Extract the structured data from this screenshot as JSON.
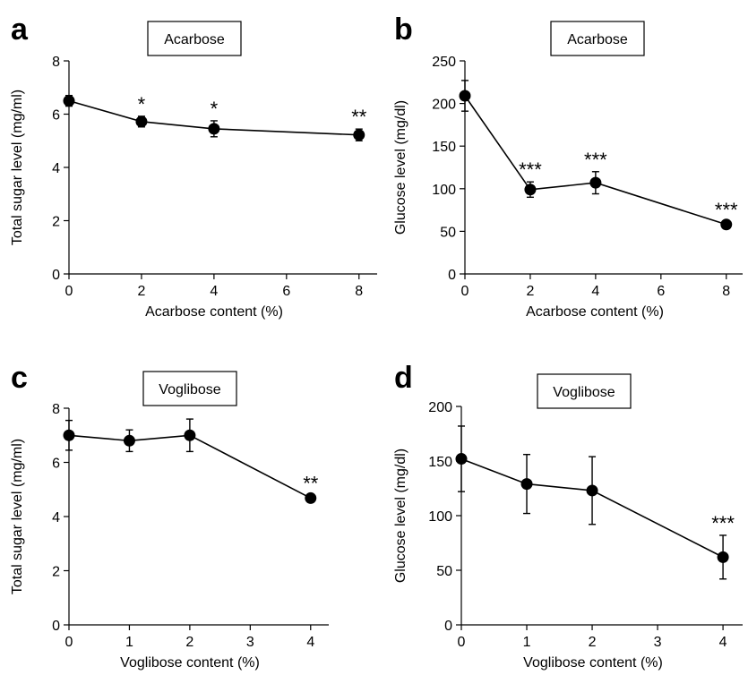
{
  "chart_data": [
    {
      "type": "line",
      "panel_label": "a",
      "title": "Acarbose",
      "xlabel": "Acarbose content (%)",
      "ylabel": "Total sugar level (mg/ml)",
      "x": [
        0,
        2,
        4,
        8
      ],
      "y": [
        6.5,
        5.72,
        5.45,
        5.22
      ],
      "err": [
        0.2,
        0.2,
        0.3,
        0.22
      ],
      "sig": [
        "",
        "*",
        "*",
        "**"
      ],
      "xlim": [
        0,
        8.5
      ],
      "ylim": [
        0,
        8
      ],
      "xticks": [
        0,
        2,
        4,
        6,
        8
      ],
      "yticks": [
        0,
        2,
        4,
        6,
        8
      ],
      "grid": false
    },
    {
      "type": "line",
      "panel_label": "b",
      "title": "Acarbose",
      "xlabel": "Acarbose content (%)",
      "ylabel": "Glucose level (mg/dl)",
      "x": [
        0,
        2,
        4,
        8
      ],
      "y": [
        209,
        99,
        107,
        58
      ],
      "err": [
        18,
        9,
        13,
        3
      ],
      "sig": [
        "",
        "***",
        "***",
        "***"
      ],
      "xlim": [
        0,
        8.5
      ],
      "ylim": [
        0,
        250
      ],
      "xticks": [
        0,
        2,
        4,
        6,
        8
      ],
      "yticks": [
        0,
        50,
        100,
        150,
        200,
        250
      ],
      "grid": false
    },
    {
      "type": "line",
      "panel_label": "c",
      "title": "Voglibose",
      "xlabel": "Voglibose content (%)",
      "ylabel": "Total sugar level (mg/ml)",
      "x": [
        0,
        1,
        2,
        4
      ],
      "y": [
        7.0,
        6.8,
        7.0,
        4.68
      ],
      "err": [
        0.55,
        0.4,
        0.6,
        0.1
      ],
      "sig": [
        "",
        "",
        "",
        "**"
      ],
      "xlim": [
        0,
        4.3
      ],
      "ylim": [
        0,
        8
      ],
      "xticks": [
        0,
        1,
        2,
        3,
        4
      ],
      "yticks": [
        0,
        2,
        4,
        6,
        8
      ],
      "grid": false
    },
    {
      "type": "line",
      "panel_label": "d",
      "title": "Voglibose",
      "xlabel": "Voglibose content (%)",
      "ylabel": "Glucose level (mg/dl)",
      "x": [
        0,
        1,
        2,
        4
      ],
      "y": [
        152,
        129,
        123,
        62
      ],
      "err": [
        30,
        27,
        31,
        20
      ],
      "sig": [
        "",
        "",
        "",
        "***"
      ],
      "xlim": [
        0,
        4.3
      ],
      "ylim": [
        0,
        200
      ],
      "xticks": [
        0,
        1,
        2,
        3,
        4
      ],
      "yticks": [
        0,
        50,
        100,
        150,
        200
      ],
      "grid": false
    }
  ]
}
